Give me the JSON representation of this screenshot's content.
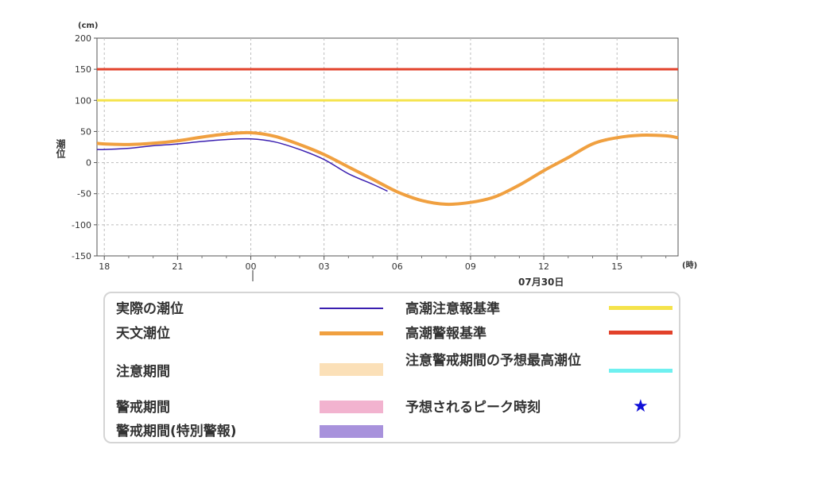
{
  "chart_data": {
    "type": "line",
    "y_unit": "(cm)",
    "ylabel": "潮位",
    "x_unit": "(時)",
    "ylim": [
      -150,
      200
    ],
    "yticks": [
      200,
      150,
      100,
      50,
      0,
      -50,
      -100,
      -150
    ],
    "x_hours_range": [
      17.7,
      41.5
    ],
    "xticks": [
      {
        "label": "18",
        "hour": 18
      },
      {
        "label": "21",
        "hour": 21
      },
      {
        "label": "00",
        "hour": 24
      },
      {
        "label": "03",
        "hour": 27
      },
      {
        "label": "06",
        "hour": 30
      },
      {
        "label": "09",
        "hour": 33
      },
      {
        "label": "12",
        "hour": 36
      },
      {
        "label": "15",
        "hour": 39
      }
    ],
    "date_label": "07月30日",
    "grid": true,
    "series": [
      {
        "name": "高潮注意報基準",
        "color": "#f5e34a",
        "kind": "level",
        "value": 100
      },
      {
        "name": "高潮警報基準",
        "color": "#e2412a",
        "kind": "level",
        "value": 150
      },
      {
        "name": "天文潮位",
        "color": "#f0a040",
        "x": [
          17.7,
          18.0,
          19.0,
          20.0,
          21.0,
          22.0,
          23.0,
          24.0,
          25.0,
          26.0,
          27.0,
          28.0,
          29.0,
          30.0,
          31.0,
          32.0,
          33.0,
          34.0,
          35.0,
          36.0,
          37.0,
          38.0,
          39.0,
          40.0,
          41.0,
          41.5
        ],
        "y": [
          31,
          30,
          29,
          31,
          35,
          41,
          46,
          48,
          42,
          29,
          13,
          -7,
          -27,
          -47,
          -61,
          -67,
          -64,
          -55,
          -36,
          -13,
          8,
          30,
          40,
          44,
          43,
          40
        ]
      },
      {
        "name": "実際の潮位",
        "color": "#3a1fb0",
        "x": [
          17.7,
          18.0,
          19.0,
          20.0,
          21.0,
          22.0,
          23.0,
          24.0,
          25.0,
          26.0,
          27.0,
          28.0,
          29.0,
          29.6
        ],
        "y": [
          21,
          21,
          23,
          27,
          30,
          34,
          37,
          38,
          33,
          21,
          5,
          -18,
          -35,
          -46
        ]
      }
    ]
  },
  "legend": {
    "items": [
      {
        "label": "実際の潮位",
        "color": "#3a1fb0",
        "kind": "line"
      },
      {
        "label": "天文潮位",
        "color": "#f0a040",
        "kind": "line"
      },
      {
        "label": "注意期間",
        "color": "#fbe0b8",
        "kind": "band"
      },
      {
        "label": "警戒期間",
        "color": "#f2b3cf",
        "kind": "band"
      },
      {
        "label": "警戒期間(特別警報)",
        "color": "#a892dc",
        "kind": "band"
      },
      {
        "label": "高潮注意報基準",
        "color": "#f5e34a",
        "kind": "line"
      },
      {
        "label": "高潮警報基準",
        "color": "#e2412a",
        "kind": "line"
      },
      {
        "label": "注意警戒期間の予想最高潮位",
        "color": "#6ff0f0",
        "kind": "line"
      },
      {
        "label": "予想されるピーク時刻",
        "color": "#1010d8",
        "kind": "star",
        "symbol": "★"
      }
    ]
  }
}
